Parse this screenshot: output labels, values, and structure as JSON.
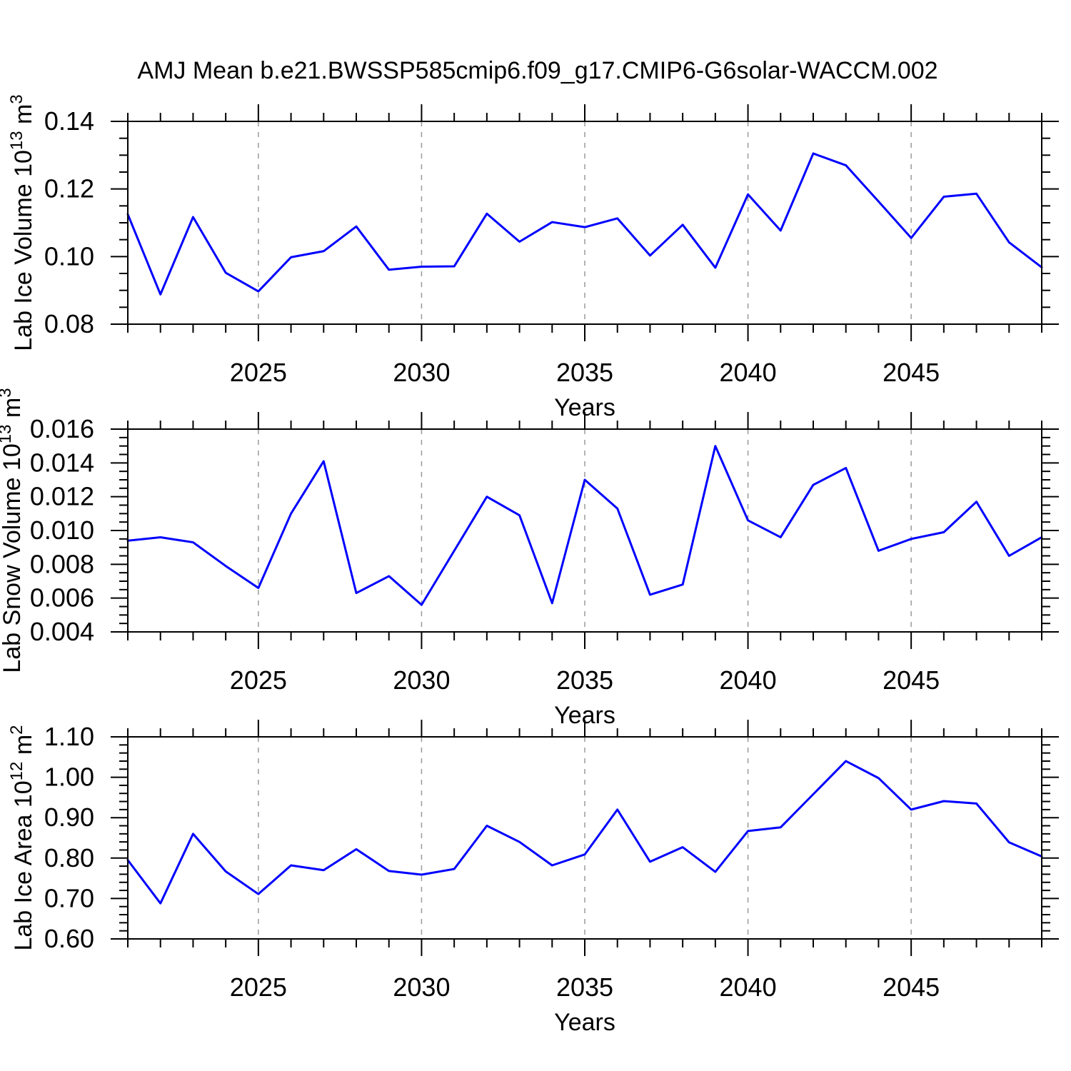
{
  "title": "AMJ Mean b.e21.BWSSP585cmip6.f09_g17.CMIP6-G6solar-WACCM.002",
  "colors": {
    "line": "#0000ff",
    "grid": "#9a9a9a",
    "axis": "#000000",
    "text": "#000000",
    "background": "#ffffff"
  },
  "chart_data": [
    {
      "type": "line",
      "name": "lab-ice-volume",
      "ylabel_parts": [
        {
          "text": "Lab Ice Volume 10"
        },
        {
          "text": "13",
          "sup": true
        },
        {
          "text": " m"
        },
        {
          "text": "3",
          "sup": true
        }
      ],
      "xlabel": "Years",
      "xlim": [
        2021,
        2049
      ],
      "ylim": [
        0.08,
        0.14
      ],
      "grid": "vertical-dashed",
      "legend": "none",
      "xticks_major": [
        2025,
        2030,
        2035,
        2040,
        2045
      ],
      "xtick_labels": [
        "2025",
        "2030",
        "2035",
        "2040",
        "2045"
      ],
      "xminor_step": 1,
      "grid_at": [
        2025,
        2030,
        2035,
        2040,
        2045
      ],
      "yticks": [
        {
          "v": 0.08,
          "label": "0.08"
        },
        {
          "v": 0.1,
          "label": "0.10"
        },
        {
          "v": 0.12,
          "label": "0.12"
        },
        {
          "v": 0.14,
          "label": "0.14"
        }
      ],
      "yminor_step": 0.005,
      "x": [
        2021,
        2022,
        2023,
        2024,
        2025,
        2026,
        2027,
        2028,
        2029,
        2030,
        2031,
        2032,
        2033,
        2034,
        2035,
        2036,
        2037,
        2038,
        2039,
        2040,
        2041,
        2042,
        2043,
        2044,
        2045,
        2046,
        2047,
        2048,
        2049
      ],
      "values": [
        0.1125,
        0.0888,
        0.1117,
        0.0952,
        0.0897,
        0.0998,
        0.1016,
        0.1089,
        0.0961,
        0.097,
        0.0971,
        0.1127,
        0.1044,
        0.1102,
        0.1087,
        0.1113,
        0.1003,
        0.1094,
        0.0967,
        0.1184,
        0.1077,
        0.1305,
        0.127,
        0.1163,
        0.1055,
        0.1177,
        0.1186,
        0.1042,
        0.0968
      ]
    },
    {
      "type": "line",
      "name": "lab-snow-volume",
      "ylabel_parts": [
        {
          "text": "Lab Snow Volume 10"
        },
        {
          "text": "13",
          "sup": true
        },
        {
          "text": " m"
        },
        {
          "text": "3",
          "sup": true
        }
      ],
      "xlabel": "Years",
      "xlim": [
        2021,
        2049
      ],
      "ylim": [
        0.004,
        0.016
      ],
      "grid": "vertical-dashed",
      "legend": "none",
      "xticks_major": [
        2025,
        2030,
        2035,
        2040,
        2045
      ],
      "xtick_labels": [
        "2025",
        "2030",
        "2035",
        "2040",
        "2045"
      ],
      "xminor_step": 1,
      "grid_at": [
        2025,
        2030,
        2035,
        2040,
        2045
      ],
      "yticks": [
        {
          "v": 0.004,
          "label": "0.004"
        },
        {
          "v": 0.006,
          "label": "0.006"
        },
        {
          "v": 0.008,
          "label": "0.008"
        },
        {
          "v": 0.01,
          "label": "0.010"
        },
        {
          "v": 0.012,
          "label": "0.012"
        },
        {
          "v": 0.014,
          "label": "0.014"
        },
        {
          "v": 0.016,
          "label": "0.016"
        }
      ],
      "yminor_step": 0.0005,
      "x": [
        2021,
        2022,
        2023,
        2024,
        2025,
        2026,
        2027,
        2028,
        2029,
        2030,
        2031,
        2032,
        2033,
        2034,
        2035,
        2036,
        2037,
        2038,
        2039,
        2040,
        2041,
        2042,
        2043,
        2044,
        2045,
        2046,
        2047,
        2048,
        2049
      ],
      "values": [
        0.0094,
        0.0096,
        0.0093,
        0.0079,
        0.0066,
        0.011,
        0.0141,
        0.0063,
        0.0073,
        0.0056,
        0.0088,
        0.012,
        0.0109,
        0.0057,
        0.013,
        0.0113,
        0.0062,
        0.0068,
        0.015,
        0.0106,
        0.0096,
        0.0127,
        0.0137,
        0.0088,
        0.0095,
        0.0099,
        0.0117,
        0.0085,
        0.0096
      ]
    },
    {
      "type": "line",
      "name": "lab-ice-area",
      "ylabel_parts": [
        {
          "text": "Lab Ice Area 10"
        },
        {
          "text": "12",
          "sup": true
        },
        {
          "text": " m"
        },
        {
          "text": "2",
          "sup": true
        }
      ],
      "xlabel": "Years",
      "xlim": [
        2021,
        2049
      ],
      "ylim": [
        0.6,
        1.1
      ],
      "grid": "vertical-dashed",
      "legend": "none",
      "xticks_major": [
        2025,
        2030,
        2035,
        2040,
        2045
      ],
      "xtick_labels": [
        "2025",
        "2030",
        "2035",
        "2040",
        "2045"
      ],
      "xminor_step": 1,
      "grid_at": [
        2025,
        2030,
        2035,
        2040,
        2045
      ],
      "yticks": [
        {
          "v": 0.6,
          "label": "0.60"
        },
        {
          "v": 0.7,
          "label": "0.70"
        },
        {
          "v": 0.8,
          "label": "0.80"
        },
        {
          "v": 0.9,
          "label": "0.90"
        },
        {
          "v": 1.0,
          "label": "1.00"
        },
        {
          "v": 1.1,
          "label": "1.10"
        }
      ],
      "yminor_step": 0.02,
      "x": [
        2021,
        2022,
        2023,
        2024,
        2025,
        2026,
        2027,
        2028,
        2029,
        2030,
        2031,
        2032,
        2033,
        2034,
        2035,
        2036,
        2037,
        2038,
        2039,
        2040,
        2041,
        2042,
        2043,
        2044,
        2045,
        2046,
        2047,
        2048,
        2049
      ],
      "values": [
        0.795,
        0.688,
        0.86,
        0.767,
        0.711,
        0.782,
        0.77,
        0.822,
        0.768,
        0.759,
        0.773,
        0.88,
        0.84,
        0.782,
        0.809,
        0.92,
        0.791,
        0.827,
        0.766,
        0.867,
        0.876,
        0.958,
        1.04,
        0.998,
        0.92,
        0.941,
        0.935,
        0.839,
        0.804
      ]
    }
  ]
}
